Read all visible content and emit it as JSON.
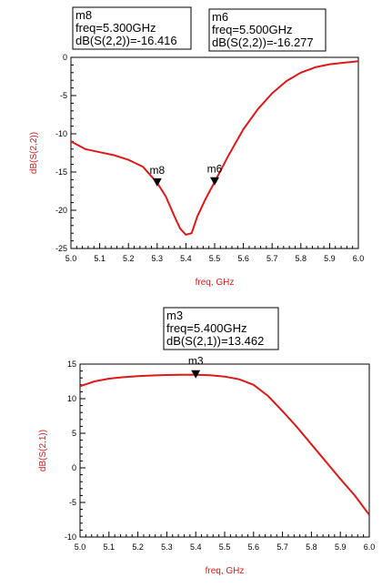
{
  "curve_color": "#e01818",
  "marker_color": "#000000",
  "frame_color": "#000000",
  "chart_data": [
    {
      "type": "line",
      "xlabel": "freq, GHz",
      "ylabel": "dB(S(2,2))",
      "xlim": [
        5.0,
        6.0
      ],
      "ylim": [
        -25,
        0
      ],
      "xticks": [
        "5.0",
        "5.1",
        "5.2",
        "5.3",
        "5.4",
        "5.5",
        "5.6",
        "5.7",
        "5.8",
        "5.9",
        "6.0"
      ],
      "yticks": [
        "0",
        "-5",
        "-10",
        "-15",
        "-20",
        "-25"
      ],
      "grid": false,
      "series": [
        {
          "x": [
            5.0,
            5.05,
            5.1,
            5.15,
            5.2,
            5.25,
            5.3,
            5.33,
            5.36,
            5.38,
            5.4,
            5.42,
            5.44,
            5.47,
            5.5,
            5.55,
            5.6,
            5.65,
            5.7,
            5.75,
            5.8,
            5.85,
            5.9,
            5.95,
            6.0
          ],
          "y": [
            -11.0,
            -12.0,
            -12.4,
            -12.8,
            -13.4,
            -14.3,
            -16.4,
            -18.2,
            -20.8,
            -22.4,
            -23.2,
            -23.0,
            -20.8,
            -18.4,
            -16.3,
            -12.7,
            -9.4,
            -6.8,
            -4.7,
            -3.1,
            -2.0,
            -1.3,
            -0.9,
            -0.7,
            -0.5
          ]
        }
      ],
      "markers": [
        {
          "name": "m8",
          "x": 5.3,
          "y": -16.416,
          "lines": [
            "m8",
            "freq=5.300GHz",
            "dB(S(2,2))=-16.416"
          ]
        },
        {
          "name": "m6",
          "x": 5.5,
          "y": -16.277,
          "lines": [
            "m6",
            "freq=5.500GHz",
            "dB(S(2,2))=-16.277"
          ]
        }
      ]
    },
    {
      "type": "line",
      "xlabel": "freq, GHz",
      "ylabel": "dB(S(2,1))",
      "xlim": [
        5.0,
        6.0
      ],
      "ylim": [
        -10,
        15
      ],
      "xticks": [
        "5.0",
        "5.1",
        "5.2",
        "5.3",
        "5.4",
        "5.5",
        "5.6",
        "5.7",
        "5.8",
        "5.9",
        "6.0"
      ],
      "yticks": [
        "15",
        "10",
        "5",
        "0",
        "-5",
        "-10"
      ],
      "grid": false,
      "series": [
        {
          "x": [
            5.0,
            5.05,
            5.1,
            5.15,
            5.2,
            5.25,
            5.3,
            5.35,
            5.4,
            5.45,
            5.5,
            5.55,
            5.6,
            5.65,
            5.7,
            5.75,
            5.8,
            5.85,
            5.9,
            5.95,
            6.0
          ],
          "y": [
            11.8,
            12.5,
            12.9,
            13.1,
            13.25,
            13.35,
            13.42,
            13.45,
            13.46,
            13.4,
            13.2,
            12.8,
            12.0,
            10.4,
            8.2,
            5.9,
            3.4,
            0.9,
            -1.6,
            -4.0,
            -6.8
          ]
        }
      ],
      "markers": [
        {
          "name": "m3",
          "x": 5.4,
          "y": 13.462,
          "lines": [
            "m3",
            "freq=5.400GHz",
            "dB(S(2,1))=13.462"
          ]
        }
      ]
    }
  ]
}
